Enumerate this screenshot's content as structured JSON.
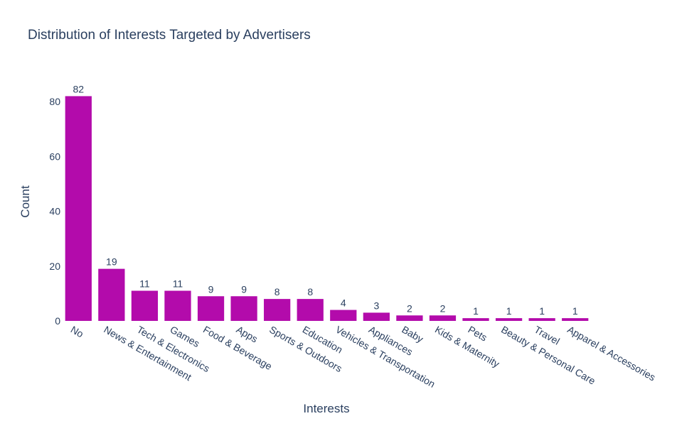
{
  "chart_data": {
    "type": "bar",
    "title": "Distribution of Interests Targeted by Advertisers",
    "xlabel": "Interests",
    "ylabel": "Count",
    "ylim": [
      0,
      86
    ],
    "yticks": [
      0,
      20,
      40,
      60,
      80
    ],
    "grid": false,
    "bar_color": "#b30bab",
    "text_color": "#2a3f5f",
    "categories": [
      "No",
      "News & Entertainment",
      "Tech & Electronics",
      "Games",
      "Food & Beverage",
      "Apps",
      "Sports & Outdoors",
      "Education",
      "Vehicles & Transportation",
      "Appliances",
      "Baby",
      "Kids & Maternity",
      "Pets",
      "Beauty & Personal Care",
      "Travel",
      "Apparel & Accessories"
    ],
    "values": [
      82,
      19,
      11,
      11,
      9,
      9,
      8,
      8,
      4,
      3,
      2,
      2,
      1,
      1,
      1,
      1
    ]
  }
}
